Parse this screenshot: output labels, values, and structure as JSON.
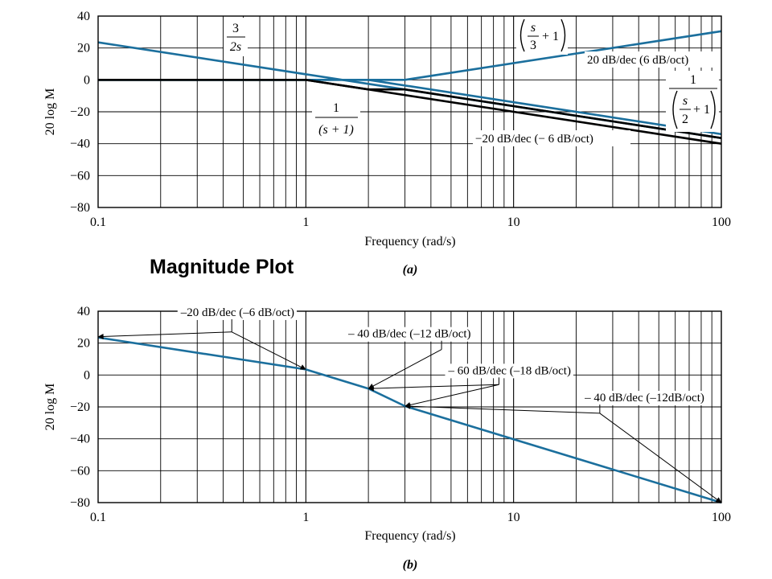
{
  "figure_title": "Magnitude Plot",
  "colors": {
    "asymptote": "#1b6f9d",
    "sum": "#000000",
    "grid": "#000000"
  },
  "chart_data": [
    {
      "id": "a",
      "type": "line",
      "caption": "(a)",
      "xlabel": "Frequency (rad/s)",
      "ylabel": "20 log M",
      "xscale": "log",
      "xlim": [
        0.1,
        100
      ],
      "ylim": [
        -80,
        40
      ],
      "grid": true,
      "x_ticks": [
        {
          "v": 0.1,
          "label": "0.1"
        },
        {
          "v": 1,
          "label": "1"
        },
        {
          "v": 10,
          "label": "10"
        },
        {
          "v": 100,
          "label": "100"
        }
      ],
      "y_ticks": [
        {
          "v": 40,
          "label": "40"
        },
        {
          "v": 20,
          "label": "20"
        },
        {
          "v": 0,
          "label": "0"
        },
        {
          "v": -20,
          "label": "−20"
        },
        {
          "v": -40,
          "label": "−40"
        },
        {
          "v": -60,
          "label": "−60"
        },
        {
          "v": -80,
          "label": "−80"
        }
      ],
      "series": [
        {
          "x": [
            0.1,
            100
          ],
          "y": [
            23.5,
            -36.5
          ],
          "style": "asymptote"
        },
        {
          "x": [
            0.1,
            3,
            100
          ],
          "y": [
            0,
            0,
            30.5
          ],
          "style": "asymptote"
        },
        {
          "x": [
            0.1,
            2,
            100
          ],
          "y": [
            0,
            0,
            -34
          ],
          "style": "asymptote"
        },
        {
          "x": [
            0.1,
            1,
            100
          ],
          "y": [
            0,
            0,
            -40
          ],
          "style": "sum"
        },
        {
          "x": [
            0.1,
            1,
            2,
            3,
            100
          ],
          "y": [
            0,
            0,
            -6,
            -6,
            -36.5
          ],
          "style": "sum"
        }
      ],
      "annotations": [
        {
          "kind": "fraction",
          "num": "3",
          "den": "2s",
          "pos": [
            0.41,
            25
          ]
        },
        {
          "kind": "fraction",
          "num": "1",
          "den": "(s + 1)",
          "pos": [
            1.27,
            -24
          ]
        },
        {
          "kind": "paren-fraction",
          "num": "s",
          "den": "3",
          "tail": "+ 1",
          "pos": [
            13.5,
            30
          ]
        },
        {
          "kind": "text",
          "text": "20 dB/dec (6 dB/oct)",
          "pos": [
            24,
            12
          ]
        },
        {
          "kind": "nested-fraction",
          "num": "1",
          "inner_num": "s",
          "inner_den": "2",
          "tail": "+ 1",
          "pos": [
            58,
            -15
          ]
        },
        {
          "kind": "text",
          "text": "−20 dB/dec (− 6 dB/oct)",
          "pos": [
            8.2,
            -36
          ]
        }
      ]
    },
    {
      "id": "b",
      "type": "line",
      "caption": "(b)",
      "xlabel": "Frequency (rad/s)",
      "ylabel": "20 log M",
      "xscale": "log",
      "xlim": [
        0.1,
        100
      ],
      "ylim": [
        -80,
        40
      ],
      "grid": true,
      "x_ticks": [
        {
          "v": 0.1,
          "label": "0.1"
        },
        {
          "v": 1,
          "label": "1"
        },
        {
          "v": 10,
          "label": "10"
        },
        {
          "v": 100,
          "label": "100"
        }
      ],
      "y_ticks": [
        {
          "v": 40,
          "label": "40"
        },
        {
          "v": 20,
          "label": "20"
        },
        {
          "v": 0,
          "label": "0"
        },
        {
          "v": -20,
          "label": "−20"
        },
        {
          "v": -40,
          "label": "−40"
        },
        {
          "v": -60,
          "label": "−60"
        },
        {
          "v": -80,
          "label": "−80"
        }
      ],
      "series": [
        {
          "x": [
            0.1,
            1,
            2,
            3,
            100
          ],
          "y": [
            23.5,
            3.5,
            -8.5,
            -19.5,
            -80
          ],
          "style": "asymptote"
        }
      ],
      "annotations": [
        {
          "kind": "arrow-label",
          "text": "–20 dB/dec (–6 dB/oct)",
          "label_at": [
            0.25,
            37
          ],
          "elbow": [
            0.44,
            27
          ],
          "targets": [
            [
              0.1,
              24
            ],
            [
              1,
              3.5
            ]
          ]
        },
        {
          "kind": "arrow-label",
          "text": "– 40 dB/dec (–12 dB/oct)",
          "label_at": [
            1.6,
            23.5
          ],
          "elbow": [
            4.5,
            16
          ],
          "targets": [
            [
              2,
              -8.5
            ]
          ]
        },
        {
          "kind": "arrow-label",
          "text": "– 60 dB/dec (–18 dB/oct)",
          "label_at": [
            4.85,
            0.5
          ],
          "elbow": [
            8.5,
            -6
          ],
          "targets": [
            [
              2,
              -8.5
            ],
            [
              3,
              -19.5
            ]
          ]
        },
        {
          "kind": "arrow-label",
          "text": "– 40 dB/dec (–12dB/oct)",
          "label_at": [
            22,
            -16.5
          ],
          "elbow": [
            26,
            -24
          ],
          "targets": [
            [
              3,
              -19.5
            ],
            [
              100,
              -80
            ]
          ]
        }
      ]
    }
  ]
}
